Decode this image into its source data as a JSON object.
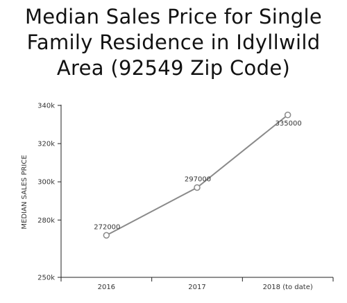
{
  "title_lines": [
    "Median Sales Price for Single",
    "Family Residence in Idyllwild",
    "Area (92549 Zip Code)"
  ],
  "chart_data": {
    "type": "line",
    "title": "Median Sales Price for Single Family Residence in Idyllwild Area (92549 Zip Code)",
    "xlabel": "",
    "ylabel": "MEDIAN SALES PRICE",
    "categories": [
      "2016",
      "2017",
      "2018 (to date)"
    ],
    "series": [
      {
        "values": [
          272000,
          297000,
          335000
        ]
      }
    ],
    "data_labels": [
      "272000",
      "297000",
      "335000"
    ],
    "ylim": [
      250000,
      340000
    ],
    "yticks": [
      250000,
      280000,
      300000,
      320000,
      340000
    ],
    "ytick_labels": [
      "250k",
      "280k",
      "300k",
      "320k",
      "340k"
    ],
    "grid": false,
    "legend": "none",
    "line_color": "#8a8a8a",
    "marker_fill": "#ffffff"
  }
}
